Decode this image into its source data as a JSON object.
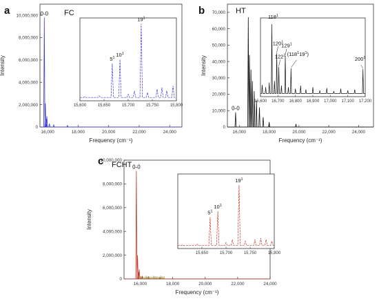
{
  "chart_data": [
    {
      "panel": "a",
      "tag": "FC",
      "type": "line",
      "color": "#3a3ad8",
      "xlabel": "Frequency (cm⁻¹)",
      "ylabel": "Intensity",
      "xlim": [
        15500,
        24800
      ],
      "ylim": [
        0,
        11000000
      ],
      "xticks": [
        "16,000",
        "18,000",
        "20,000",
        "22,000",
        "24,000"
      ],
      "xtick_values": [
        16000,
        18000,
        20000,
        22000,
        24000
      ],
      "yticks": [
        "0",
        "2,000,000",
        "4,000,000",
        "6,000,000",
        "8,000,000",
        "10,000,000"
      ],
      "ytick_values": [
        0,
        2000000,
        4000000,
        6000000,
        8000000,
        10000000
      ],
      "peaks": [
        {
          "x": 15785,
          "y": 9800000,
          "label": "0-0"
        },
        {
          "x": 15850,
          "y": 2100000,
          "label": ""
        },
        {
          "x": 15900,
          "y": 700000,
          "label": ""
        },
        {
          "x": 15950,
          "y": 950000,
          "label": ""
        },
        {
          "x": 16120,
          "y": 300000,
          "label": ""
        },
        {
          "x": 16400,
          "y": 200000,
          "label": ""
        },
        {
          "x": 17300,
          "y": 150000,
          "label": ""
        }
      ],
      "inset": {
        "xlim": [
          15600,
          15800
        ],
        "xticks": [
          "15,600",
          "15,650",
          "15,700",
          "15,750",
          "15,800"
        ],
        "xtick_values": [
          15600,
          15650,
          15700,
          15750,
          15800
        ],
        "ylim": [
          0,
          1
        ],
        "peaks": [
          {
            "x": 15667,
            "y": 0.45,
            "label": "5",
            "sup": "1"
          },
          {
            "x": 15683,
            "y": 0.5,
            "label": "10",
            "sup": "1"
          },
          {
            "x": 15727,
            "y": 0.93,
            "label": "19",
            "sup": "1"
          },
          {
            "x": 15610,
            "y": 0.05,
            "label": "",
            "sup": ""
          },
          {
            "x": 15640,
            "y": 0.06,
            "label": "",
            "sup": ""
          },
          {
            "x": 15700,
            "y": 0.08,
            "label": "",
            "sup": ""
          },
          {
            "x": 15713,
            "y": 0.12,
            "label": "",
            "sup": ""
          },
          {
            "x": 15740,
            "y": 0.1,
            "label": "",
            "sup": ""
          },
          {
            "x": 15760,
            "y": 0.14,
            "label": "",
            "sup": ""
          },
          {
            "x": 15770,
            "y": 0.16,
            "label": "",
            "sup": ""
          },
          {
            "x": 15780,
            "y": 0.12,
            "label": "",
            "sup": ""
          },
          {
            "x": 15793,
            "y": 0.18,
            "label": "",
            "sup": ""
          }
        ]
      }
    },
    {
      "panel": "b",
      "tag": "HT",
      "type": "line",
      "color": "#111111",
      "xlabel": "Frequency (cm⁻¹)",
      "ylabel": "Intensity",
      "xlim": [
        15200,
        25000
      ],
      "ylim": [
        0,
        75000
      ],
      "xticks": [
        "16,000",
        "18,000",
        "20,000",
        "22,000",
        "24,000"
      ],
      "xtick_values": [
        16000,
        18000,
        20000,
        22000,
        24000
      ],
      "yticks": [
        "0",
        "10,000",
        "20,000",
        "30,000",
        "40,000",
        "50,000",
        "60,000",
        "70,000"
      ],
      "ytick_values": [
        0,
        10000,
        20000,
        30000,
        40000,
        50000,
        60000,
        70000
      ],
      "peaks": [
        {
          "x": 15750,
          "y": 9000,
          "label": "0-0"
        },
        {
          "x": 16600,
          "y": 67000,
          "label": ""
        },
        {
          "x": 16680,
          "y": 44000,
          "label": ""
        },
        {
          "x": 16780,
          "y": 35000,
          "label": ""
        },
        {
          "x": 16880,
          "y": 28000,
          "label": ""
        },
        {
          "x": 17000,
          "y": 22000,
          "label": ""
        },
        {
          "x": 17150,
          "y": 16000,
          "label": ""
        },
        {
          "x": 17350,
          "y": 12000,
          "label": ""
        },
        {
          "x": 17600,
          "y": 6000,
          "label": ""
        },
        {
          "x": 18000,
          "y": 3000,
          "label": ""
        },
        {
          "x": 19800,
          "y": 1800,
          "label": ""
        }
      ],
      "inset": {
        "xlim": [
          16600,
          17200
        ],
        "xticks": [
          "16,600",
          "16,700",
          "16,800",
          "16,900",
          "17,000",
          "17,100",
          "17,200"
        ],
        "xtick_values": [
          16600,
          16700,
          16800,
          16900,
          17000,
          17100,
          17200
        ],
        "ylim": [
          0,
          1
        ],
        "peaks": [
          {
            "x": 16665,
            "y": 0.92,
            "label": "118",
            "sup": "1"
          },
          {
            "x": 16693,
            "y": 0.55,
            "label": "120",
            "sup": "1"
          },
          {
            "x": 16705,
            "y": 0.38,
            "label": "122",
            "sup": "1"
          },
          {
            "x": 16742,
            "y": 0.52,
            "label": "129",
            "sup": "1"
          },
          {
            "x": 16775,
            "y": 0.36,
            "label": "(118",
            "sup": "1",
            "label2": "19",
            "sup2": "1",
            "label3": ")"
          },
          {
            "x": 17187,
            "y": 0.35,
            "label": "200",
            "sup": "1"
          },
          {
            "x": 16610,
            "y": 0.15,
            "label": "",
            "sup": ""
          },
          {
            "x": 16630,
            "y": 0.12,
            "label": "",
            "sup": ""
          },
          {
            "x": 16650,
            "y": 0.18,
            "label": "",
            "sup": ""
          },
          {
            "x": 16680,
            "y": 0.2,
            "label": "",
            "sup": ""
          },
          {
            "x": 16720,
            "y": 0.14,
            "label": "",
            "sup": ""
          },
          {
            "x": 16760,
            "y": 0.12,
            "label": "",
            "sup": ""
          },
          {
            "x": 16800,
            "y": 0.1,
            "label": "",
            "sup": ""
          },
          {
            "x": 16830,
            "y": 0.14,
            "label": "",
            "sup": ""
          },
          {
            "x": 16860,
            "y": 0.09,
            "label": "",
            "sup": ""
          },
          {
            "x": 16900,
            "y": 0.12,
            "label": "",
            "sup": ""
          },
          {
            "x": 16940,
            "y": 0.08,
            "label": "",
            "sup": ""
          },
          {
            "x": 16980,
            "y": 0.11,
            "label": "",
            "sup": ""
          },
          {
            "x": 17020,
            "y": 0.07,
            "label": "",
            "sup": ""
          },
          {
            "x": 17060,
            "y": 0.1,
            "label": "",
            "sup": ""
          },
          {
            "x": 17100,
            "y": 0.08,
            "label": "",
            "sup": ""
          },
          {
            "x": 17140,
            "y": 0.09,
            "label": "",
            "sup": ""
          }
        ]
      }
    },
    {
      "panel": "c",
      "tag": "FCHT",
      "type": "line",
      "color": "#c0392b",
      "color2": "#8a7d1a",
      "xlabel": "Frequency (cm⁻¹)",
      "ylabel": "Intensity",
      "xlim": [
        15000,
        24000
      ],
      "ylim": [
        0,
        10000000
      ],
      "xticks": [
        "16,000",
        "18,000",
        "20,000",
        "22,000",
        "24,000"
      ],
      "xtick_values": [
        16000,
        18000,
        20000,
        22000,
        24000
      ],
      "yticks": [
        "0",
        "2,000,000",
        "4,000,000",
        "6,000,000",
        "8,000,000",
        "10,000,000"
      ],
      "ytick_values": [
        0,
        2000000,
        4000000,
        6000000,
        8000000,
        10000000
      ],
      "peaks": [
        {
          "x": 15760,
          "y": 9100000,
          "label": "0-0"
        },
        {
          "x": 15830,
          "y": 2000000,
          "label": ""
        },
        {
          "x": 15880,
          "y": 600000,
          "label": ""
        },
        {
          "x": 15940,
          "y": 800000,
          "label": ""
        },
        {
          "x": 16120,
          "y": 200000,
          "label": ""
        },
        {
          "x": 16500,
          "y": 150000,
          "label": ""
        },
        {
          "x": 17200,
          "y": 120000,
          "label": ""
        }
      ],
      "inset": {
        "xlim": [
          15600,
          15800
        ],
        "xticks": [
          "15,650",
          "15,700",
          "15,750",
          "15,800"
        ],
        "xtick_values": [
          15650,
          15700,
          15750,
          15800
        ],
        "ylim": [
          0,
          1
        ],
        "peaks": [
          {
            "x": 15667,
            "y": 0.42,
            "label": "5",
            "sup": "1"
          },
          {
            "x": 15683,
            "y": 0.5,
            "label": "10",
            "sup": "1"
          },
          {
            "x": 15727,
            "y": 0.85,
            "label": "19",
            "sup": "1"
          },
          {
            "x": 15610,
            "y": 0.05,
            "label": "",
            "sup": ""
          },
          {
            "x": 15640,
            "y": 0.06,
            "label": "",
            "sup": ""
          },
          {
            "x": 15700,
            "y": 0.08,
            "label": "",
            "sup": ""
          },
          {
            "x": 15713,
            "y": 0.12,
            "label": "",
            "sup": ""
          },
          {
            "x": 15740,
            "y": 0.1,
            "label": "",
            "sup": ""
          },
          {
            "x": 15760,
            "y": 0.12,
            "label": "",
            "sup": ""
          },
          {
            "x": 15772,
            "y": 0.14,
            "label": "",
            "sup": ""
          },
          {
            "x": 15783,
            "y": 0.12,
            "label": "",
            "sup": ""
          },
          {
            "x": 15795,
            "y": 0.1,
            "label": "",
            "sup": ""
          }
        ]
      }
    }
  ]
}
